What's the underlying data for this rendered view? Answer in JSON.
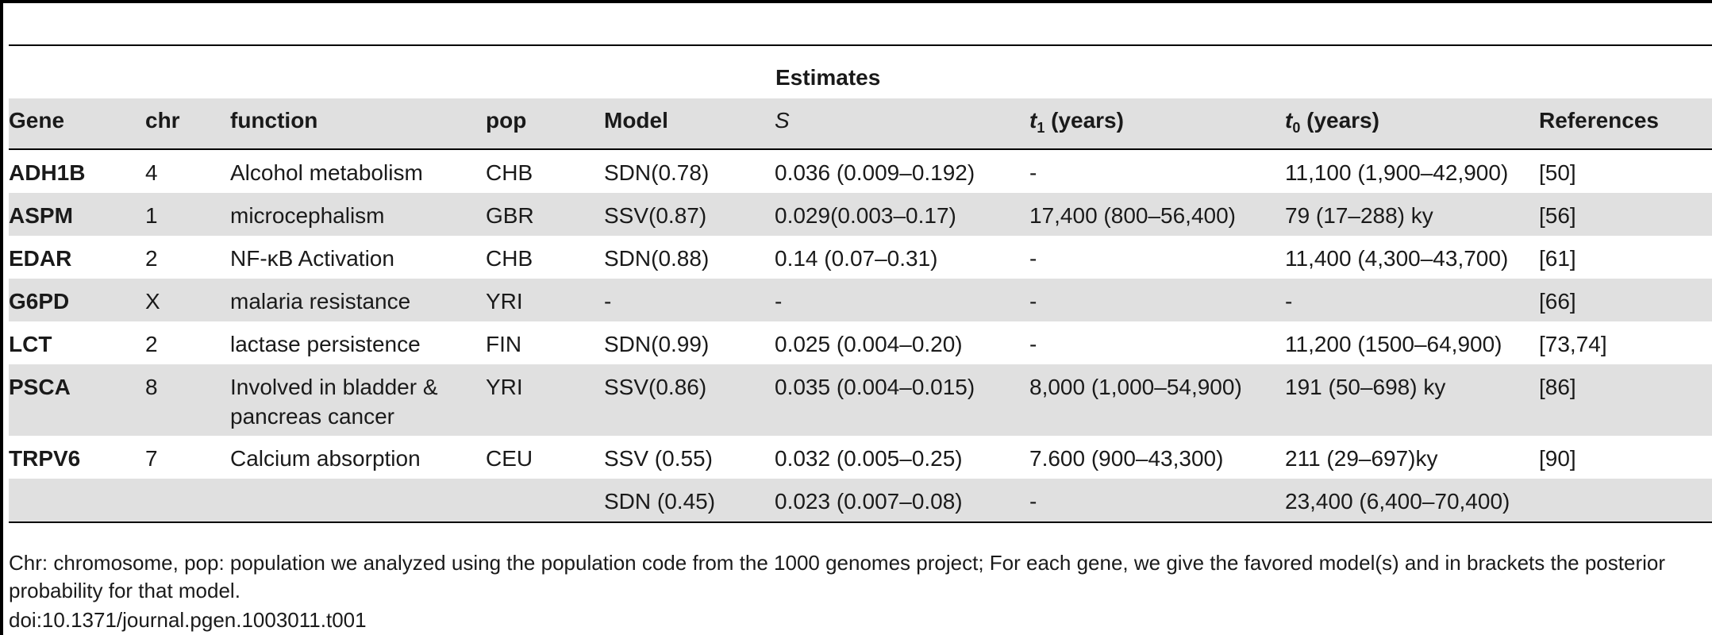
{
  "table": {
    "group_header": "Estimates",
    "columns": {
      "gene": "Gene",
      "chr": "chr",
      "function": "function",
      "pop": "pop",
      "model": "Model",
      "s": "S",
      "t1_sym": "t",
      "t1_sub": "1",
      "t1_unit": " (years)",
      "t0_sym": "t",
      "t0_sub": "0",
      "t0_unit": " (years)",
      "references": "References"
    },
    "rows": [
      {
        "gene": "ADH1B",
        "chr": "4",
        "function": "Alcohol metabolism",
        "pop": "CHB",
        "model": "SDN(0.78)",
        "s": "0.036 (0.009–0.192)",
        "t1": "-",
        "t0": "11,100 (1,900–42,900)",
        "ref": "[50]"
      },
      {
        "gene": "ASPM",
        "chr": "1",
        "function": "microcephalism",
        "pop": "GBR",
        "model": "SSV(0.87)",
        "s": "0.029(0.003–0.17)",
        "t1": "17,400 (800–56,400)",
        "t0": "79 (17–288) ky",
        "ref": "[56]"
      },
      {
        "gene": "EDAR",
        "chr": "2",
        "function": "NF-κB Activation",
        "pop": "CHB",
        "model": "SDN(0.88)",
        "s": "0.14 (0.07–0.31)",
        "t1": "-",
        "t0": "11,400 (4,300–43,700)",
        "ref": "[61]"
      },
      {
        "gene": "G6PD",
        "chr": "X",
        "function": "malaria resistance",
        "pop": "YRI",
        "model": "-",
        "s": "-",
        "t1": "-",
        "t0": "-",
        "ref": "[66]"
      },
      {
        "gene": "LCT",
        "chr": "2",
        "function": "lactase persistence",
        "pop": "FIN",
        "model": "SDN(0.99)",
        "s": "0.025 (0.004–0.20)",
        "t1": "-",
        "t0": "11,200 (1500–64,900)",
        "ref": "[73,74]"
      },
      {
        "gene": "PSCA",
        "chr": "8",
        "function_line1": "Involved in bladder &",
        "function_line2": "pancreas cancer",
        "pop": "YRI",
        "model": "SSV(0.86)",
        "s": "0.035 (0.004–0.015)",
        "t1": "8,000 (1,000–54,900)",
        "t0": "191 (50–698) ky",
        "ref": "[86]"
      },
      {
        "gene": "TRPV6",
        "chr": "7",
        "function": "Calcium absorption",
        "pop": "CEU",
        "model": "SSV (0.55)",
        "s": "0.032 (0.005–0.25)",
        "t1": "7.600 (900–43,300)",
        "t0": "211 (29–697)ky",
        "ref": "[90]"
      },
      {
        "gene": "",
        "chr": "",
        "function": "",
        "pop": "",
        "model": "SDN (0.45)",
        "s": "0.023 (0.007–0.08)",
        "t1": "-",
        "t0": "23,400 (6,400–70,400)",
        "ref": ""
      }
    ]
  },
  "footnote": "Chr: chromosome, pop: population we analyzed using the population code from the 1000 genomes project; For each gene, we give the favored model(s) and in brackets the posterior probability for that model.",
  "doi": "doi:10.1371/journal.pgen.1003011.t001"
}
